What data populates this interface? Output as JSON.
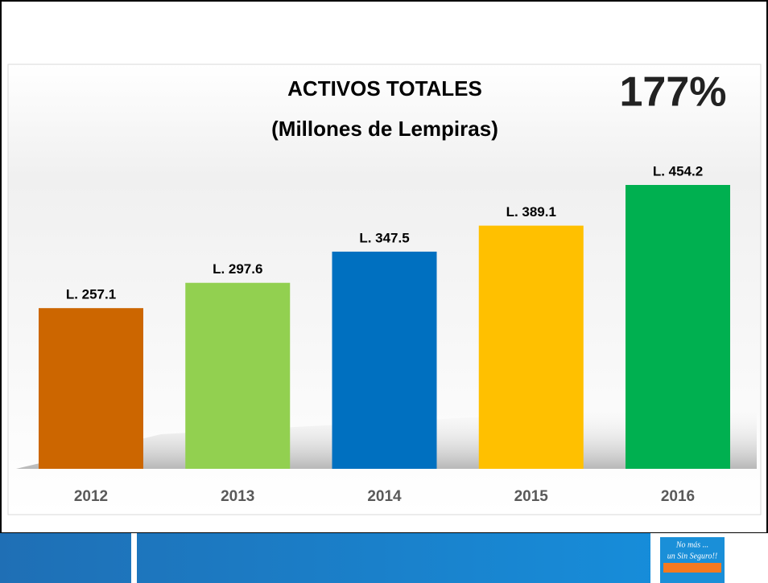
{
  "chart_data": {
    "type": "bar",
    "title": "ACTIVOS TOTALES",
    "subtitle": "(Millones de Lempiras)",
    "annotation": "177%",
    "categories": [
      "2012",
      "2013",
      "2014",
      "2015",
      "2016"
    ],
    "values": [
      257.1,
      297.6,
      347.5,
      389.1,
      454.2
    ],
    "value_labels": [
      "L. 257.1",
      "L. 297.6",
      "L. 347.5",
      "L. 389.1",
      "L. 454.2"
    ],
    "colors": [
      "#cc6600",
      "#92d050",
      "#0070c0",
      "#ffc000",
      "#00b050"
    ]
  },
  "footer": {
    "logo_lines": [
      "No más ...",
      "un Sin Seguro!!"
    ]
  }
}
